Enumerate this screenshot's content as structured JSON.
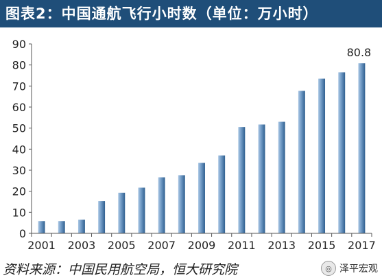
{
  "header": {
    "title": "图表2：中国通航飞行小时数（单位：万小时）"
  },
  "footer": {
    "source": "资料来源：中国民用航空局，恒大研究院",
    "watermark": "泽平宏观",
    "watermark_icon": "wechat-icon"
  },
  "colors": {
    "title_bg": "#1f4e79",
    "bar_light": "#a9c6e4",
    "bar_dark": "#2f5f8f"
  },
  "chart_data": {
    "type": "bar",
    "categories": [
      "2001",
      "2002",
      "2003",
      "2004",
      "2005",
      "2006",
      "2007",
      "2008",
      "2009",
      "2010",
      "2011",
      "2012",
      "2013",
      "2014",
      "2015",
      "2016",
      "2017"
    ],
    "x_tick_labels": [
      "2001",
      "2003",
      "2005",
      "2007",
      "2009",
      "2011",
      "2013",
      "2015",
      "2017"
    ],
    "values": [
      5.8,
      5.8,
      6.5,
      15.3,
      19.3,
      21.7,
      26.6,
      27.6,
      33.5,
      37.0,
      50.5,
      51.7,
      53.0,
      67.7,
      73.5,
      76.5,
      80.8
    ],
    "data_labels": [
      {
        "index": 16,
        "text": "80.8"
      }
    ],
    "ylim": [
      0,
      90
    ],
    "y_ticks": [
      0,
      10,
      20,
      30,
      40,
      50,
      60,
      70,
      80,
      90
    ],
    "title": "图表2：中国通航飞行小时数（单位：万小时）",
    "xlabel": "",
    "ylabel": "",
    "grid": false,
    "legend": "none"
  }
}
